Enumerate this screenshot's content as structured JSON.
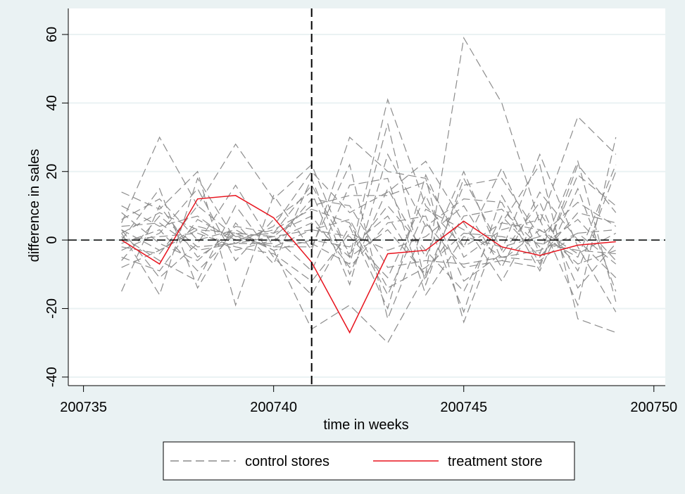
{
  "chart_data": {
    "type": "line",
    "x_label": "time in weeks",
    "y_label": "difference in sales",
    "x": [
      200736,
      200737,
      200738,
      200739,
      200740,
      200741,
      200742,
      200743,
      200744,
      200745,
      200746,
      200747,
      200748,
      200749
    ],
    "xlim": [
      200734.6,
      200750.3
    ],
    "ylim": [
      -42.5,
      67.6
    ],
    "xticks": [
      200735,
      200740,
      200745,
      200750
    ],
    "yticks": [
      -40,
      -20,
      0,
      20,
      40,
      60
    ],
    "grid": true,
    "xline": 200741,
    "yline": 0,
    "series": [
      {
        "name": "control stores",
        "color": "#8c8c8c",
        "dashed": true,
        "values": [
          [
            5,
            30,
            10,
            28,
            12,
            22,
            -5,
            41,
            10,
            -2,
            5,
            3,
            -4,
            2
          ],
          [
            -15,
            10,
            -5,
            2,
            -3,
            -26,
            -19,
            -30,
            -10,
            59,
            40,
            5,
            36,
            25
          ],
          [
            14,
            9,
            20,
            -19,
            13,
            -3,
            30,
            20,
            18,
            -24,
            5,
            22,
            -23,
            -27
          ],
          [
            2,
            -16,
            18,
            0,
            0,
            -1,
            -7,
            34,
            -13,
            18,
            -3,
            25,
            -2,
            -21
          ],
          [
            0,
            15,
            -14,
            5,
            -7,
            18,
            -10,
            15,
            -5,
            20,
            -6,
            -8,
            22,
            8
          ],
          [
            -8,
            -3,
            3,
            2,
            1,
            10,
            13,
            13,
            17,
            -2,
            21,
            -4,
            23,
            -18
          ],
          [
            3,
            -11,
            -1,
            16,
            -2,
            -2,
            22,
            -23,
            5,
            -8,
            -6,
            3,
            -7,
            -3
          ],
          [
            10,
            4,
            7,
            -1,
            4,
            20,
            8,
            14,
            23,
            5,
            -12,
            8,
            -9,
            20
          ],
          [
            -3,
            2,
            15,
            -6,
            6,
            14,
            -13,
            25,
            4,
            12,
            11,
            -9,
            15,
            -15
          ],
          [
            1,
            -6,
            -12,
            10,
            -5,
            -16,
            4,
            -20,
            19,
            -5,
            3,
            6,
            -19,
            30
          ],
          [
            6,
            12,
            0,
            3,
            -3,
            0,
            -2,
            7,
            -11,
            16,
            18,
            1,
            11,
            4
          ],
          [
            -5,
            -9,
            6,
            0,
            3,
            9,
            5,
            -16,
            9,
            3,
            -5,
            -3,
            2,
            -7
          ],
          [
            4,
            5,
            -3,
            -1,
            -1,
            12,
            10,
            -8,
            -6,
            -7,
            -5,
            -6,
            2,
            3
          ],
          [
            -1,
            3,
            -9,
            2,
            1,
            -9,
            16,
            18,
            -16,
            1,
            -2,
            1,
            -5,
            22
          ],
          [
            2,
            8,
            3,
            -3,
            0,
            5,
            -5,
            3,
            -10,
            7,
            9,
            -2,
            6,
            -6
          ],
          [
            -2,
            -4,
            10,
            1,
            -2,
            3,
            1,
            -11,
            13,
            -12,
            -4,
            11,
            -14,
            -1
          ],
          [
            8,
            -1,
            -6,
            4,
            2,
            7,
            -8,
            5,
            7,
            -21,
            13,
            -7,
            19,
            10
          ],
          [
            0,
            1,
            2,
            -2,
            -4,
            -12,
            2,
            -3,
            1,
            10,
            -8,
            14,
            0,
            -11
          ],
          [
            3,
            -3,
            4,
            1,
            2,
            16,
            -4,
            10,
            -3,
            -15,
            7,
            -5,
            8,
            5
          ],
          [
            -6,
            7,
            -2,
            -1,
            1,
            3,
            6,
            -14,
            -8,
            2,
            1,
            -1,
            -3,
            -4
          ]
        ]
      },
      {
        "name": "treatment store",
        "color": "#e8141e",
        "dashed": false,
        "values": [
          0,
          -7,
          12,
          13,
          6.5,
          -6.5,
          -27,
          -4,
          -3,
          5.5,
          -2,
          -4.5,
          -1.5,
          -0.5
        ]
      }
    ]
  }
}
